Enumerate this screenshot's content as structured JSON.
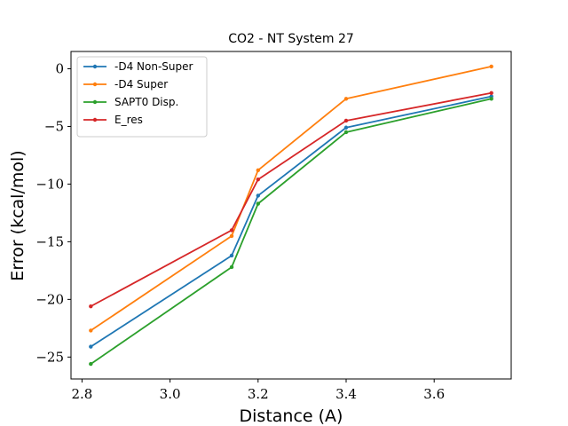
{
  "chart_data": {
    "type": "line",
    "title": "CO2 - NT System 27",
    "xlabel": "Distance (A)",
    "ylabel": "Error (kcal/mol)",
    "xlim": [
      2.775,
      3.775
    ],
    "ylim": [
      -26.9,
      1.5
    ],
    "xticks": [
      2.8,
      3.0,
      3.2,
      3.4,
      3.6
    ],
    "xtick_labels": [
      "2.8",
      "3.0",
      "3.2",
      "3.4",
      "3.6"
    ],
    "yticks": [
      0,
      -5,
      -10,
      -15,
      -20,
      -25
    ],
    "ytick_labels": [
      "0",
      "−5",
      "−10",
      "−15",
      "−20",
      "−25"
    ],
    "grid": false,
    "legend_position": "upper-left",
    "x": [
      2.82,
      3.14,
      3.2,
      3.4,
      3.73
    ],
    "series": [
      {
        "name": "-D4 Non-Super",
        "color": "#1f77b4",
        "values": [
          -24.1,
          -16.2,
          -11.0,
          -5.1,
          -2.4
        ]
      },
      {
        "name": "-D4 Super",
        "color": "#ff7f0e",
        "values": [
          -22.7,
          -14.5,
          -8.8,
          -2.6,
          0.2
        ]
      },
      {
        "name": "SAPT0 Disp.",
        "color": "#2ca02c",
        "values": [
          -25.6,
          -17.2,
          -11.7,
          -5.5,
          -2.6
        ]
      },
      {
        "name": "E_res",
        "color": "#d62728",
        "values": [
          -20.6,
          -14.0,
          -9.6,
          -4.5,
          -2.1
        ]
      }
    ]
  }
}
